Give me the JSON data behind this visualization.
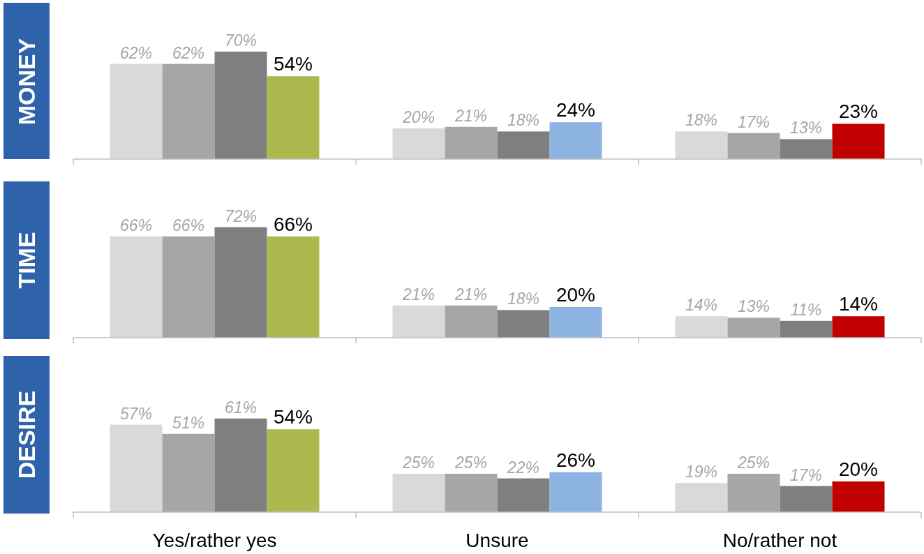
{
  "chart_data": [
    {
      "type": "bar",
      "title": "MONEY",
      "categories": [
        null,
        null,
        null
      ],
      "series": [
        {
          "color": "#d9d9d9",
          "values": [
            62,
            20,
            18
          ],
          "value_labels": [
            "62%",
            "20%",
            "18%"
          ]
        },
        {
          "color": "#a6a6a6",
          "values": [
            62,
            21,
            17
          ],
          "value_labels": [
            "62%",
            "21%",
            "17%"
          ]
        },
        {
          "color": "#7f7f7f",
          "values": [
            70,
            18,
            13
          ],
          "value_labels": [
            "70%",
            "18%",
            "13%"
          ]
        },
        {
          "colors": [
            "#adb84f",
            "#8db3e2",
            "#c00000"
          ],
          "values": [
            54,
            24,
            23
          ],
          "value_labels": [
            "54%",
            "24%",
            "23%"
          ]
        }
      ]
    },
    {
      "type": "bar",
      "title": "TIME",
      "categories": [
        null,
        null,
        null
      ],
      "series": [
        {
          "color": "#d9d9d9",
          "values": [
            66,
            21,
            14
          ],
          "value_labels": [
            "66%",
            "21%",
            "14%"
          ]
        },
        {
          "color": "#a6a6a6",
          "values": [
            66,
            21,
            13
          ],
          "value_labels": [
            "66%",
            "21%",
            "13%"
          ]
        },
        {
          "color": "#7f7f7f",
          "values": [
            72,
            18,
            11
          ],
          "value_labels": [
            "72%",
            "18%",
            "11%"
          ]
        },
        {
          "colors": [
            "#adb84f",
            "#8db3e2",
            "#c00000"
          ],
          "values": [
            66,
            20,
            14
          ],
          "value_labels": [
            "66%",
            "20%",
            "14%"
          ]
        }
      ]
    },
    {
      "type": "bar",
      "title": "DESIRE",
      "categories": [
        "Yes/rather yes",
        "Unsure",
        "No/rather not"
      ],
      "tick_labels": "x",
      "series": [
        {
          "color": "#d9d9d9",
          "values": [
            57,
            25,
            19
          ],
          "value_labels": [
            "57%",
            "25%",
            "19%"
          ]
        },
        {
          "color": "#a6a6a6",
          "values": [
            51,
            25,
            25
          ],
          "value_labels": [
            "51%",
            "25%",
            "25%"
          ]
        },
        {
          "color": "#7f7f7f",
          "values": [
            61,
            22,
            17
          ],
          "value_labels": [
            "61%",
            "22%",
            "17%"
          ]
        },
        {
          "colors": [
            "#adb84f",
            "#8db3e2",
            "#c00000"
          ],
          "values": [
            54,
            26,
            20
          ],
          "value_labels": [
            "54%",
            "26%",
            "20%"
          ]
        }
      ]
    }
  ]
}
